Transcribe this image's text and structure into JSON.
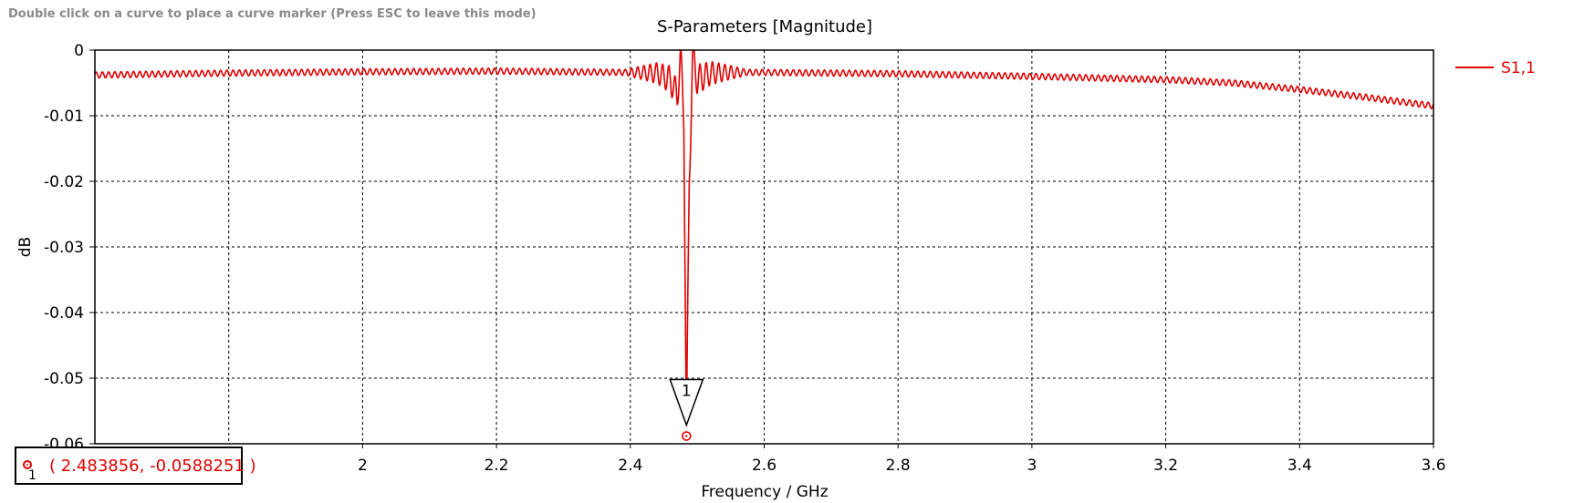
{
  "hint": "Double click on a curve to place a curve marker (Press ESC to leave this mode)",
  "chart_data": {
    "type": "line",
    "title": "S-Parameters [Magnitude]",
    "xlabel": "Frequency / GHz",
    "ylabel": "dB",
    "xlim": [
      1.6,
      3.6
    ],
    "ylim": [
      -0.06,
      0
    ],
    "x_ticks": [
      "2",
      "2.2",
      "2.4",
      "2.6",
      "2.8",
      "3",
      "3.2",
      "3.4",
      "3.6"
    ],
    "x_tick_values": [
      2,
      2.2,
      2.4,
      2.6,
      2.8,
      3,
      3.2,
      3.4,
      3.6
    ],
    "y_ticks": [
      "0",
      "-0.01",
      "-0.02",
      "-0.03",
      "-0.04",
      "-0.05",
      "-0.06"
    ],
    "y_tick_values": [
      0,
      -0.01,
      -0.02,
      -0.03,
      -0.04,
      -0.05,
      -0.06
    ],
    "x_gridlines": [
      1.8,
      2,
      2.2,
      2.4,
      2.6,
      2.8,
      3,
      3.2,
      3.4
    ],
    "grid": true,
    "legend_position": "right",
    "series": [
      {
        "name": "S1,1",
        "color": "#e00000",
        "x": [
          1.6,
          1.8,
          2.0,
          2.2,
          2.4,
          2.44,
          2.46,
          2.47,
          2.475,
          2.48,
          2.483856,
          2.488,
          2.493,
          2.5,
          2.52,
          2.55,
          2.6,
          2.8,
          3.0,
          3.2,
          3.3,
          3.4,
          3.5,
          3.6
        ],
        "y": [
          -0.0038,
          -0.0035,
          -0.0033,
          -0.0032,
          -0.0034,
          -0.0035,
          -0.0045,
          -0.007,
          -0.001,
          -0.01,
          -0.0588251,
          -0.02,
          -0.001,
          -0.0045,
          -0.0035,
          -0.0034,
          -0.0034,
          -0.0036,
          -0.004,
          -0.0045,
          -0.005,
          -0.006,
          -0.0072,
          -0.0085
        ]
      }
    ],
    "markers": [
      {
        "label": "1",
        "x": 2.483856,
        "y": -0.0588251
      }
    ]
  },
  "readout": {
    "index": "1",
    "text": "( 2.483856, -0.0588251 )"
  }
}
